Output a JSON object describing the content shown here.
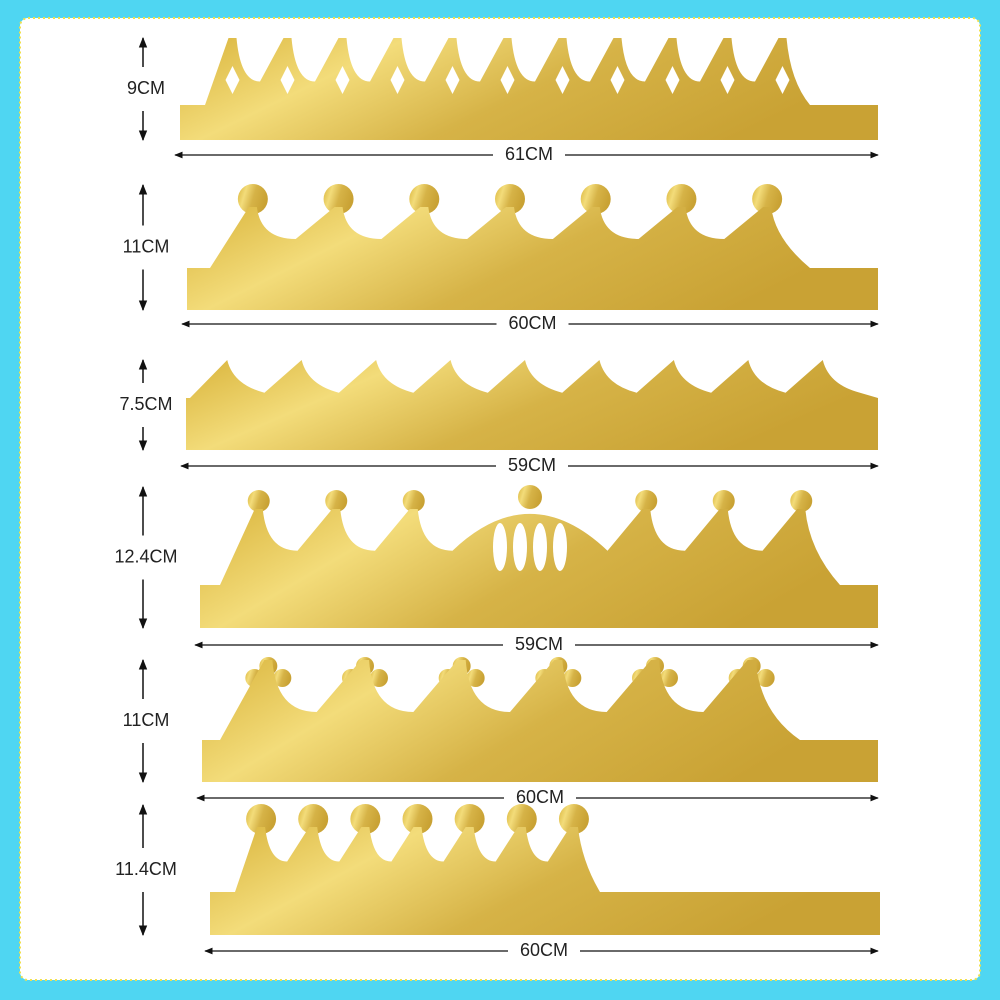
{
  "items": [
    {
      "height": "9CM",
      "width": "61CM"
    },
    {
      "height": "11CM",
      "width": "60CM"
    },
    {
      "height": "7.5CM",
      "width": "59CM"
    },
    {
      "height": "12.4CM",
      "width": "59CM"
    },
    {
      "height": "11CM",
      "width": "60CM"
    },
    {
      "height": "11.4CM",
      "width": "60CM"
    }
  ]
}
